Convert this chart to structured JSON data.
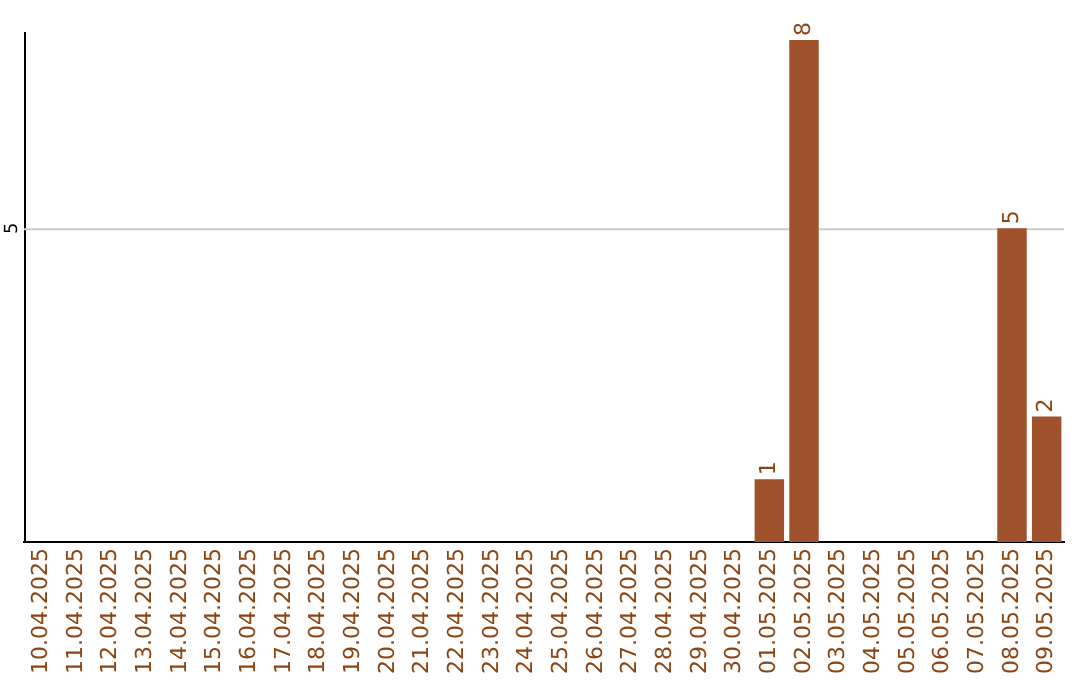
{
  "chart_data": {
    "type": "bar",
    "categories": [
      "10.04.2025",
      "11.04.2025",
      "12.04.2025",
      "13.04.2025",
      "14.04.2025",
      "15.04.2025",
      "16.04.2025",
      "17.04.2025",
      "18.04.2025",
      "19.04.2025",
      "20.04.2025",
      "21.04.2025",
      "22.04.2025",
      "23.04.2025",
      "24.04.2025",
      "25.04.2025",
      "26.04.2025",
      "27.04.2025",
      "28.04.2025",
      "29.04.2025",
      "30.04.2025",
      "01.05.2025",
      "02.05.2025",
      "03.05.2025",
      "04.05.2025",
      "05.05.2025",
      "06.05.2025",
      "07.05.2025",
      "08.05.2025",
      "09.05.2025"
    ],
    "values": [
      null,
      null,
      null,
      null,
      null,
      null,
      null,
      null,
      null,
      null,
      null,
      null,
      null,
      null,
      null,
      null,
      null,
      null,
      null,
      null,
      null,
      1,
      8,
      null,
      null,
      null,
      null,
      null,
      5,
      2
    ],
    "data_labels": true,
    "color": "#a0522d",
    "ref_lines": [
      {
        "axis": "y",
        "value": 5,
        "label": "5",
        "color": "#cccccc"
      }
    ],
    "legend": false
  }
}
